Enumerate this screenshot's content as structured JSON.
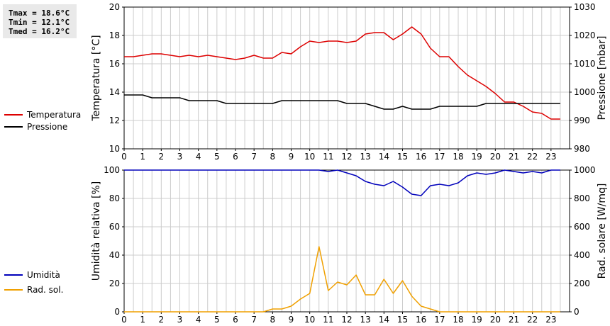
{
  "stats": {
    "tmax": "Tmax = 18.6°C",
    "tmin": "Tmin = 12.1°C",
    "tmed": "Tmed = 16.2°C"
  },
  "colors": {
    "temperature": "#dd0000",
    "pressure": "#000000",
    "humidity": "#0000bb",
    "radiation": "#f0a000",
    "grid": "#cccccc",
    "stats_bg": "#e9e9e9"
  },
  "chart_data": [
    {
      "type": "line",
      "xlim": [
        0,
        24
      ],
      "xticks": [
        "0",
        "1",
        "2",
        "3",
        "4",
        "5",
        "6",
        "7",
        "8",
        "9",
        "10",
        "11",
        "12",
        "13",
        "14",
        "15",
        "16",
        "17",
        "18",
        "19",
        "20",
        "21",
        "22",
        "23"
      ],
      "grid": true,
      "legend_placement": "left",
      "ylabel": "Temperatura [°C]",
      "ylim": [
        10,
        20
      ],
      "yticks": [
        "10",
        "12",
        "14",
        "16",
        "18",
        "20"
      ],
      "y2label": "Pressione [mbar]",
      "y2lim": [
        980,
        1030
      ],
      "y2ticks": [
        "980",
        "990",
        "1000",
        "1010",
        "1020",
        "1030"
      ],
      "series": [
        {
          "name": "Temperatura",
          "axis": "left",
          "color": "#dd0000",
          "x": [
            0,
            0.5,
            1,
            1.5,
            2,
            2.5,
            3,
            3.5,
            4,
            4.5,
            5,
            5.5,
            6,
            6.5,
            7,
            7.5,
            8,
            8.5,
            9,
            9.5,
            10,
            10.5,
            11,
            11.5,
            12,
            12.5,
            13,
            13.5,
            14,
            14.5,
            15,
            15.5,
            16,
            16.5,
            17,
            17.5,
            18,
            18.5,
            19,
            19.5,
            20,
            20.5,
            21,
            21.5,
            22,
            22.5,
            23,
            23.5
          ],
          "values": [
            16.5,
            16.5,
            16.6,
            16.7,
            16.7,
            16.6,
            16.5,
            16.6,
            16.5,
            16.6,
            16.5,
            16.4,
            16.3,
            16.4,
            16.6,
            16.4,
            16.4,
            16.8,
            16.7,
            17.2,
            17.6,
            17.5,
            17.6,
            17.6,
            17.5,
            17.6,
            18.1,
            18.2,
            18.2,
            17.7,
            18.1,
            18.6,
            18.1,
            17.1,
            16.5,
            16.5,
            15.8,
            15.2,
            14.8,
            14.4,
            13.9,
            13.3,
            13.3,
            13.0,
            12.6,
            12.5,
            12.1,
            12.1
          ]
        },
        {
          "name": "Pressione",
          "axis": "right",
          "color": "#000000",
          "x": [
            0,
            0.5,
            1,
            1.5,
            2,
            2.5,
            3,
            3.5,
            4,
            4.5,
            5,
            5.5,
            6,
            6.5,
            7,
            7.5,
            8,
            8.5,
            9,
            9.5,
            10,
            10.5,
            11,
            11.5,
            12,
            12.5,
            13,
            13.5,
            14,
            14.5,
            15,
            15.5,
            16,
            16.5,
            17,
            17.5,
            18,
            18.5,
            19,
            19.5,
            20,
            20.5,
            21,
            21.5,
            22,
            22.5,
            23,
            23.5
          ],
          "values": [
            999,
            999,
            999,
            998,
            998,
            998,
            998,
            997,
            997,
            997,
            997,
            996,
            996,
            996,
            996,
            996,
            996,
            997,
            997,
            997,
            997,
            997,
            997,
            997,
            996,
            996,
            996,
            995,
            994,
            994,
            995,
            994,
            994,
            994,
            995,
            995,
            995,
            995,
            995,
            996,
            996,
            996,
            996,
            996,
            996,
            996,
            996,
            996
          ]
        }
      ]
    },
    {
      "type": "line",
      "xlim": [
        0,
        24
      ],
      "xticks": [
        "0",
        "1",
        "2",
        "3",
        "4",
        "5",
        "6",
        "7",
        "8",
        "9",
        "10",
        "11",
        "12",
        "13",
        "14",
        "15",
        "16",
        "17",
        "18",
        "19",
        "20",
        "21",
        "22",
        "23"
      ],
      "grid": true,
      "legend_placement": "left",
      "ylabel": "Umidità relativa [%]",
      "ylim": [
        0,
        100
      ],
      "yticks": [
        "0",
        "20",
        "40",
        "60",
        "80",
        "100"
      ],
      "y2label": "Rad. solare [W/mq]",
      "y2lim": [
        0,
        1000
      ],
      "y2ticks": [
        "0",
        "200",
        "400",
        "600",
        "800",
        "1000"
      ],
      "series": [
        {
          "name": "Umidità",
          "axis": "left",
          "color": "#0000bb",
          "x": [
            0,
            0.5,
            1,
            1.5,
            2,
            2.5,
            3,
            3.5,
            4,
            4.5,
            5,
            5.5,
            6,
            6.5,
            7,
            7.5,
            8,
            8.5,
            9,
            9.5,
            10,
            10.5,
            11,
            11.5,
            12,
            12.5,
            13,
            13.5,
            14,
            14.5,
            15,
            15.5,
            16,
            16.5,
            17,
            17.5,
            18,
            18.5,
            19,
            19.5,
            20,
            20.5,
            21,
            21.5,
            22,
            22.5,
            23,
            23.5
          ],
          "values": [
            100,
            100,
            100,
            100,
            100,
            100,
            100,
            100,
            100,
            100,
            100,
            100,
            100,
            100,
            100,
            100,
            100,
            100,
            100,
            100,
            100,
            100,
            99,
            100,
            98,
            96,
            92,
            90,
            89,
            92,
            88,
            83,
            82,
            89,
            90,
            89,
            91,
            96,
            98,
            97,
            98,
            100,
            99,
            98,
            99,
            98,
            100,
            100
          ]
        },
        {
          "name": "Rad. sol.",
          "axis": "right",
          "color": "#f0a000",
          "x": [
            0,
            0.5,
            1,
            1.5,
            2,
            2.5,
            3,
            3.5,
            4,
            4.5,
            5,
            5.5,
            6,
            6.5,
            7,
            7.5,
            8,
            8.5,
            9,
            9.5,
            10,
            10.5,
            11,
            11.5,
            12,
            12.5,
            13,
            13.5,
            14,
            14.5,
            15,
            15.5,
            16,
            16.5,
            17,
            17.5,
            18,
            18.5,
            19,
            19.5,
            20,
            20.5,
            21,
            21.5,
            22,
            22.5,
            23,
            23.5
          ],
          "values": [
            0,
            0,
            0,
            0,
            0,
            0,
            0,
            0,
            0,
            0,
            0,
            0,
            0,
            0,
            0,
            0,
            20,
            20,
            40,
            90,
            130,
            460,
            150,
            210,
            190,
            260,
            120,
            120,
            230,
            130,
            220,
            110,
            40,
            20,
            0,
            0,
            0,
            0,
            0,
            0,
            0,
            0,
            0,
            0,
            0,
            0,
            0,
            0
          ]
        }
      ]
    }
  ]
}
